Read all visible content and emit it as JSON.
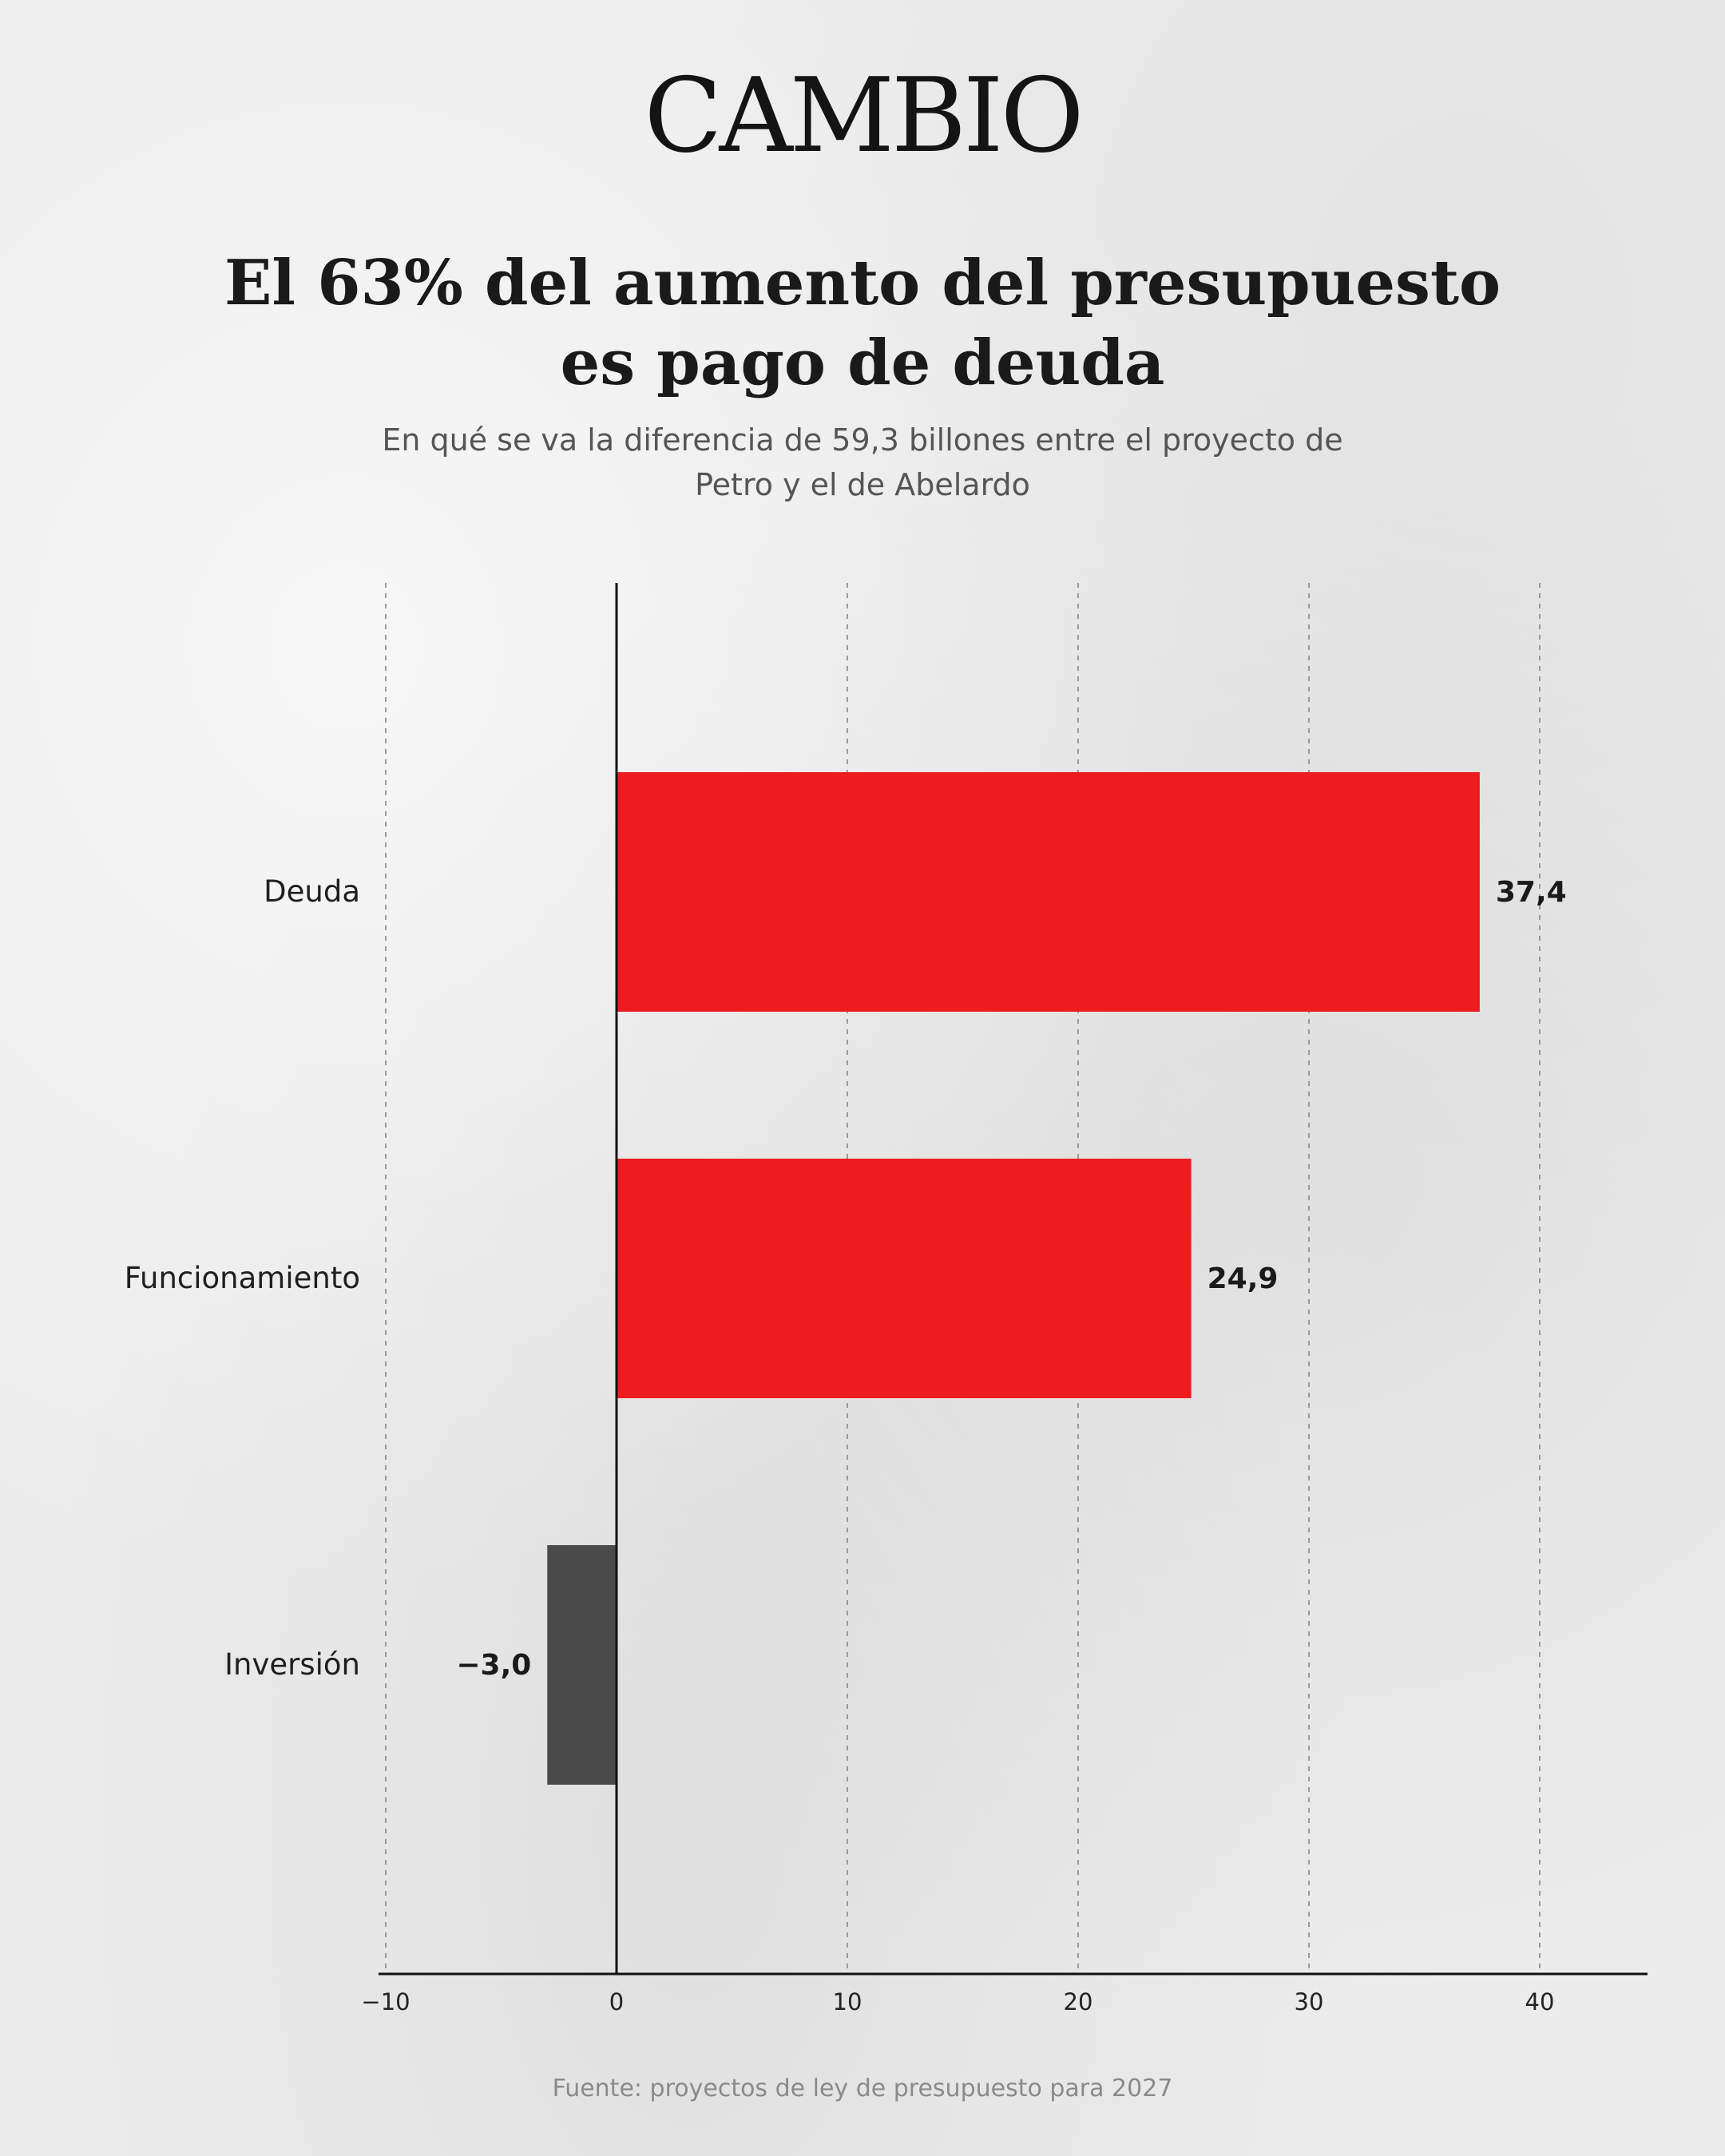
{
  "brand": {
    "logo_text": "CAMBIO"
  },
  "header": {
    "title_line1": "El 63% del aumento del presupuesto",
    "title_line2": "es pago de deuda",
    "subtitle_line1": "En qué se va la diferencia de 59,3 billones entre el proyecto de",
    "subtitle_line2": "Petro y el de Abelardo"
  },
  "footer": {
    "source": "Fuente: proyectos de ley de presupuesto para 2027"
  },
  "colors": {
    "positive": "#ee1c1f",
    "negative": "#4a4a4a",
    "background": "#ececec"
  },
  "chart_data": {
    "type": "bar",
    "orientation": "horizontal",
    "categories": [
      "Deuda",
      "Funcionamiento",
      "Inversión"
    ],
    "values": [
      37.4,
      24.9,
      -3.0
    ],
    "value_labels": [
      "37,4",
      "24,9",
      "−3,0"
    ],
    "xlim": [
      -10,
      44
    ],
    "xticks": [
      -10,
      0,
      10,
      20,
      30,
      40
    ],
    "xtick_labels": [
      "−10",
      "0",
      "10",
      "20",
      "30",
      "40"
    ],
    "grid": "vertical dashed",
    "legend": "none"
  }
}
